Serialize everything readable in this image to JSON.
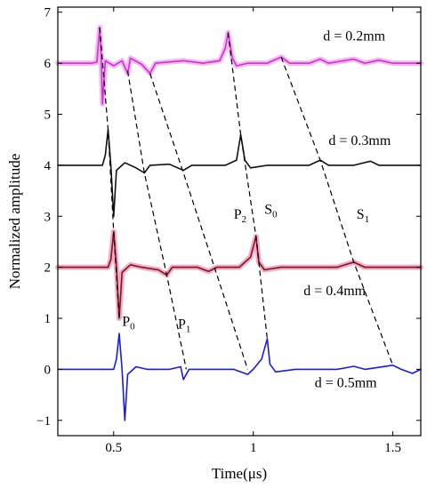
{
  "chart_data": {
    "type": "line",
    "xlabel": "Time(μs)",
    "ylabel": "Normalized amplitude",
    "xlim": [
      0.3,
      1.6
    ],
    "ylim": [
      -1.3,
      7.1
    ],
    "x_ticks": [
      0.5,
      1,
      1.5
    ],
    "x_tick_labels": [
      "0.5",
      "1",
      "1.5"
    ],
    "y_ticks": [
      -1,
      0,
      1,
      2,
      3,
      4,
      5,
      6,
      7
    ],
    "y_tick_labels": [
      "−1",
      "0",
      "1",
      "2",
      "3",
      "4",
      "5",
      "6",
      "7"
    ],
    "grid": false,
    "series": [
      {
        "name": "d = 0.2mm",
        "color": "#cc33cc",
        "highlight": "#f6b8f0",
        "offset": 6,
        "points": [
          [
            0.3,
            0
          ],
          [
            0.42,
            0
          ],
          [
            0.44,
            0.02
          ],
          [
            0.45,
            0.7
          ],
          [
            0.455,
            0.2
          ],
          [
            0.46,
            -0.8
          ],
          [
            0.47,
            0.05
          ],
          [
            0.5,
            -0.05
          ],
          [
            0.53,
            0.05
          ],
          [
            0.55,
            -0.2
          ],
          [
            0.56,
            0.1
          ],
          [
            0.6,
            -0.02
          ],
          [
            0.63,
            -0.2
          ],
          [
            0.65,
            0
          ],
          [
            0.75,
            0.05
          ],
          [
            0.82,
            0
          ],
          [
            0.88,
            0.05
          ],
          [
            0.9,
            0.3
          ],
          [
            0.91,
            0.6
          ],
          [
            0.925,
            0.1
          ],
          [
            0.94,
            -0.05
          ],
          [
            0.98,
            0
          ],
          [
            1.05,
            0
          ],
          [
            1.1,
            0.12
          ],
          [
            1.13,
            0
          ],
          [
            1.2,
            0
          ],
          [
            1.24,
            0.08
          ],
          [
            1.27,
            0
          ],
          [
            1.36,
            0.08
          ],
          [
            1.4,
            0
          ],
          [
            1.45,
            0.06
          ],
          [
            1.5,
            0
          ],
          [
            1.6,
            0
          ]
        ],
        "label": "d = 0.2mm"
      },
      {
        "name": "d = 0.3mm",
        "color": "#111111",
        "highlight": "",
        "offset": 4,
        "points": [
          [
            0.3,
            0
          ],
          [
            0.46,
            0
          ],
          [
            0.47,
            0.2
          ],
          [
            0.48,
            0.7
          ],
          [
            0.49,
            0
          ],
          [
            0.5,
            -1.0
          ],
          [
            0.51,
            -0.1
          ],
          [
            0.54,
            0.05
          ],
          [
            0.58,
            -0.05
          ],
          [
            0.61,
            -0.15
          ],
          [
            0.63,
            0
          ],
          [
            0.7,
            0.02
          ],
          [
            0.75,
            -0.1
          ],
          [
            0.78,
            0
          ],
          [
            0.9,
            0
          ],
          [
            0.94,
            0.1
          ],
          [
            0.955,
            0.6
          ],
          [
            0.97,
            0.1
          ],
          [
            0.99,
            -0.05
          ],
          [
            1.05,
            0
          ],
          [
            1.2,
            0
          ],
          [
            1.24,
            0.1
          ],
          [
            1.27,
            0
          ],
          [
            1.36,
            0
          ],
          [
            1.42,
            0.08
          ],
          [
            1.45,
            0
          ],
          [
            1.6,
            0
          ]
        ],
        "label": "d = 0.3mm"
      },
      {
        "name": "d = 0.4mm",
        "color": "#7a1a1a",
        "highlight": "#f6a8c8",
        "offset": 2,
        "points": [
          [
            0.3,
            0
          ],
          [
            0.48,
            0
          ],
          [
            0.49,
            0.15
          ],
          [
            0.5,
            0.7
          ],
          [
            0.51,
            0
          ],
          [
            0.52,
            -1.0
          ],
          [
            0.53,
            -0.1
          ],
          [
            0.56,
            0.05
          ],
          [
            0.6,
            0
          ],
          [
            0.66,
            -0.05
          ],
          [
            0.69,
            -0.15
          ],
          [
            0.71,
            0
          ],
          [
            0.8,
            0
          ],
          [
            0.84,
            -0.08
          ],
          [
            0.87,
            0
          ],
          [
            0.95,
            0
          ],
          [
            0.99,
            0.2
          ],
          [
            1.01,
            0.6
          ],
          [
            1.02,
            0.1
          ],
          [
            1.04,
            -0.05
          ],
          [
            1.1,
            0
          ],
          [
            1.2,
            0
          ],
          [
            1.3,
            0
          ],
          [
            1.36,
            0.1
          ],
          [
            1.4,
            0
          ],
          [
            1.6,
            0
          ]
        ],
        "label": "d = 0.4mm"
      },
      {
        "name": "d = 0.5mm",
        "color": "#1a1aee",
        "highlight": "",
        "offset": 0,
        "points": [
          [
            0.3,
            0
          ],
          [
            0.5,
            0
          ],
          [
            0.51,
            0.2
          ],
          [
            0.52,
            0.7
          ],
          [
            0.53,
            0
          ],
          [
            0.54,
            -1.0
          ],
          [
            0.55,
            -0.1
          ],
          [
            0.58,
            0.05
          ],
          [
            0.62,
            0
          ],
          [
            0.7,
            0
          ],
          [
            0.74,
            0.05
          ],
          [
            0.75,
            -0.2
          ],
          [
            0.77,
            0
          ],
          [
            0.85,
            0
          ],
          [
            0.93,
            0
          ],
          [
            0.98,
            -0.1
          ],
          [
            1.0,
            0
          ],
          [
            1.03,
            0.2
          ],
          [
            1.05,
            0.6
          ],
          [
            1.06,
            0.1
          ],
          [
            1.08,
            -0.05
          ],
          [
            1.15,
            0
          ],
          [
            1.3,
            0
          ],
          [
            1.36,
            0.06
          ],
          [
            1.4,
            0
          ],
          [
            1.5,
            0.08
          ],
          [
            1.53,
            0
          ],
          [
            1.57,
            -0.08
          ],
          [
            1.6,
            0
          ]
        ],
        "label": "d = 0.5mm"
      }
    ],
    "mode_lines": [
      {
        "name": "P0",
        "points": [
          [
            0.45,
            6.7
          ],
          [
            0.48,
            4.7
          ],
          [
            0.5,
            2.7
          ],
          [
            0.52,
            1.0
          ]
        ]
      },
      {
        "name": "P1",
        "points": [
          [
            0.55,
            5.85
          ],
          [
            0.61,
            3.85
          ],
          [
            0.69,
            1.85
          ],
          [
            0.76,
            0
          ]
        ]
      },
      {
        "name": "P2",
        "points": [
          [
            0.63,
            5.8
          ],
          [
            0.75,
            3.85
          ],
          [
            0.87,
            1.85
          ],
          [
            0.98,
            0
          ]
        ]
      },
      {
        "name": "S0",
        "points": [
          [
            0.91,
            6.6
          ],
          [
            0.955,
            4.6
          ],
          [
            1.01,
            2.6
          ],
          [
            1.05,
            0.6
          ]
        ]
      },
      {
        "name": "S1",
        "points": [
          [
            1.1,
            6.12
          ],
          [
            1.24,
            4.1
          ],
          [
            1.36,
            2.1
          ],
          [
            1.5,
            0.08
          ]
        ]
      }
    ],
    "annotations": [
      {
        "main": "P",
        "sub": "0",
        "x": 0.53,
        "y": 0.85
      },
      {
        "main": "P",
        "sub": "1",
        "x": 0.73,
        "y": 0.8
      },
      {
        "main": "P",
        "sub": "2",
        "x": 0.93,
        "y": 2.95
      },
      {
        "main": "S",
        "sub": "0",
        "x": 1.04,
        "y": 3.05
      },
      {
        "main": "S",
        "sub": "1",
        "x": 1.37,
        "y": 2.95
      }
    ],
    "series_labels": [
      {
        "x": 1.25,
        "y": 6.45
      },
      {
        "x": 1.27,
        "y": 4.4
      },
      {
        "x": 1.18,
        "y": 1.45
      },
      {
        "x": 1.22,
        "y": -0.35
      }
    ]
  }
}
